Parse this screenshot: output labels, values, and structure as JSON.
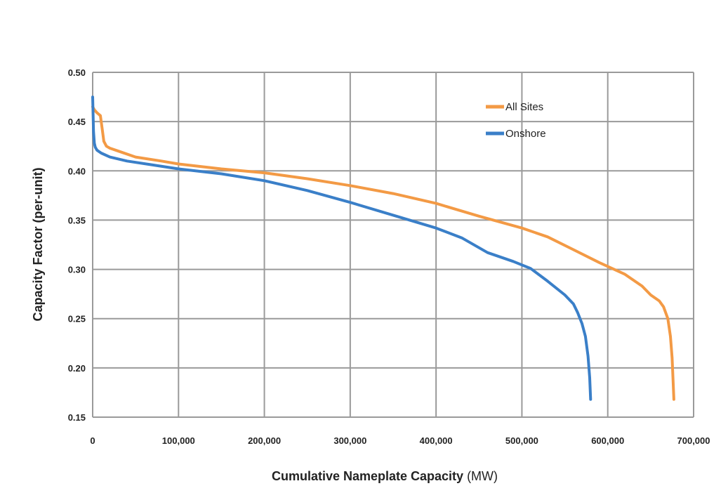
{
  "chart_data": {
    "type": "line",
    "title": "",
    "xlabel_bold": "Cumulative Nameplate Capacity",
    "xlabel_unit": "(MW)",
    "ylabel": "Capacity Factor (per-unit)",
    "xlim": [
      0,
      700000
    ],
    "ylim": [
      0.15,
      0.5
    ],
    "x_ticks": [
      0,
      100000,
      200000,
      300000,
      400000,
      500000,
      600000,
      700000
    ],
    "x_tick_labels": [
      "0",
      "100,000",
      "200,000",
      "300,000",
      "400,000",
      "500,000",
      "600,000",
      "700,000"
    ],
    "y_ticks": [
      0.15,
      0.2,
      0.25,
      0.3,
      0.35,
      0.4,
      0.45,
      0.5
    ],
    "y_tick_labels": [
      "0.15",
      "0.20",
      "0.25",
      "0.30",
      "0.35",
      "0.40",
      "0.45",
      "0.50"
    ],
    "grid": true,
    "legend_position": "top-right",
    "series": [
      {
        "name": "All Sites",
        "color": "#f39a45",
        "x": [
          0,
          2000,
          5000,
          9000,
          11000,
          13000,
          16000,
          20000,
          30000,
          50000,
          80000,
          100000,
          150000,
          200000,
          250000,
          300000,
          350000,
          400000,
          450000,
          500000,
          530000,
          560000,
          590000,
          620000,
          640000,
          650000,
          660000,
          665000,
          670000,
          673000,
          675000,
          677000
        ],
        "y": [
          0.465,
          0.462,
          0.459,
          0.456,
          0.443,
          0.43,
          0.425,
          0.423,
          0.42,
          0.414,
          0.41,
          0.407,
          0.402,
          0.398,
          0.392,
          0.385,
          0.377,
          0.367,
          0.354,
          0.342,
          0.333,
          0.32,
          0.307,
          0.295,
          0.283,
          0.274,
          0.268,
          0.262,
          0.25,
          0.232,
          0.21,
          0.168
        ]
      },
      {
        "name": "Onshore",
        "color": "#3a7fc8",
        "x": [
          0,
          1000,
          2000,
          3000,
          5000,
          10000,
          20000,
          40000,
          70000,
          100000,
          150000,
          200000,
          250000,
          300000,
          350000,
          400000,
          430000,
          460000,
          490000,
          510000,
          530000,
          550000,
          560000,
          565000,
          570000,
          574000,
          577000,
          579000,
          580000
        ],
        "y": [
          0.475,
          0.44,
          0.428,
          0.424,
          0.421,
          0.418,
          0.414,
          0.41,
          0.406,
          0.402,
          0.397,
          0.39,
          0.38,
          0.368,
          0.355,
          0.342,
          0.332,
          0.317,
          0.308,
          0.301,
          0.288,
          0.274,
          0.265,
          0.256,
          0.245,
          0.232,
          0.212,
          0.19,
          0.168
        ]
      }
    ]
  }
}
